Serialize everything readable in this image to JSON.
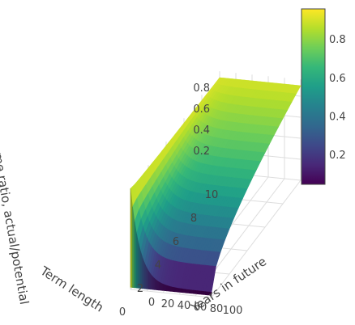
{
  "chart_data": {
    "type": "surface",
    "title": "",
    "xlabel": "Years in future",
    "ylabel": "Term length",
    "zlabel": "Income ratio, actual/potential",
    "x_ticks": [
      "0",
      "20",
      "40",
      "60",
      "80",
      "100"
    ],
    "y_ticks": [
      "0",
      "2",
      "4",
      "6",
      "8",
      "10"
    ],
    "z_ticks": [
      "0.2",
      "0.4",
      "0.6",
      "0.8"
    ],
    "xlim": [
      0,
      100
    ],
    "ylim": [
      0,
      10
    ],
    "zlim": [
      0.05,
      0.96
    ],
    "colorscale": "Viridis",
    "colorbar": {
      "ticks": [
        "0.2",
        "0.4",
        "0.6",
        "0.8"
      ],
      "range": [
        0.05,
        0.96
      ]
    },
    "samples": [
      {
        "term": 0,
        "years": 0,
        "ratio": 0.96
      },
      {
        "term": 0,
        "years": 20,
        "ratio": 0.36
      },
      {
        "term": 0,
        "years": 100,
        "ratio": 0.05
      },
      {
        "term": 5,
        "years": 50,
        "ratio": 0.55
      },
      {
        "term": 10,
        "years": 0,
        "ratio": 0.88
      },
      {
        "term": 10,
        "years": 100,
        "ratio": 0.86
      }
    ],
    "colors": {
      "viridis": [
        "#440154",
        "#482878",
        "#3e4989",
        "#31688e",
        "#26828e",
        "#1f9e89",
        "#35b779",
        "#6ece58",
        "#b5de2b",
        "#fde725"
      ]
    }
  }
}
